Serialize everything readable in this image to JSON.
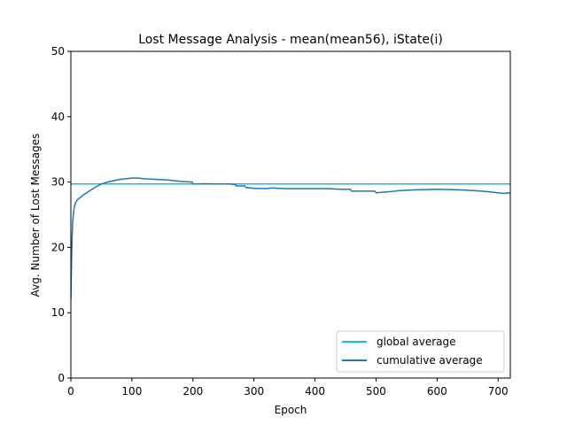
{
  "chart_data": {
    "type": "line",
    "title": "Lost Message Analysis - mean(mean56), iState(i)",
    "xlabel": "Epoch",
    "ylabel": "Avg. Number of Lost Messages",
    "xlim": [
      0,
      720
    ],
    "ylim": [
      0,
      50
    ],
    "xticks": [
      0,
      100,
      200,
      300,
      400,
      500,
      600,
      700
    ],
    "yticks": [
      0,
      10,
      20,
      30,
      40,
      50
    ],
    "grid": false,
    "legend_position": "bottom-right",
    "series": [
      {
        "name": "global average",
        "color": "#17becf",
        "x": [
          0,
          720
        ],
        "y": [
          29.7,
          29.7
        ]
      },
      {
        "name": "cumulative average",
        "color": "#1f77b4",
        "x": [
          0,
          1,
          2,
          3,
          4,
          5,
          6,
          8,
          10,
          12,
          15,
          20,
          25,
          30,
          35,
          40,
          50,
          60,
          70,
          80,
          90,
          100,
          110,
          120,
          140,
          160,
          180,
          199,
          200,
          210,
          220,
          240,
          260,
          270,
          271,
          285,
          287,
          300,
          320,
          330,
          350,
          380,
          400,
          420,
          440,
          458,
          460,
          480,
          498,
          500,
          520,
          540,
          560,
          580,
          600,
          620,
          640,
          660,
          680,
          700,
          710,
          715,
          720
        ],
        "y": [
          12.0,
          17.5,
          21.5,
          23.8,
          25.0,
          25.8,
          26.3,
          26.9,
          27.2,
          27.4,
          27.6,
          28.0,
          28.3,
          28.6,
          28.9,
          29.2,
          29.7,
          30.0,
          30.2,
          30.4,
          30.5,
          30.6,
          30.6,
          30.5,
          30.4,
          30.3,
          30.1,
          30.0,
          29.7,
          29.7,
          29.75,
          29.7,
          29.7,
          29.6,
          29.4,
          29.4,
          29.15,
          29.05,
          29.0,
          29.1,
          29.0,
          29.0,
          29.0,
          29.0,
          28.9,
          28.9,
          28.6,
          28.6,
          28.6,
          28.35,
          28.5,
          28.7,
          28.8,
          28.85,
          28.9,
          28.85,
          28.8,
          28.7,
          28.55,
          28.35,
          28.25,
          28.35,
          28.3
        ]
      }
    ]
  }
}
